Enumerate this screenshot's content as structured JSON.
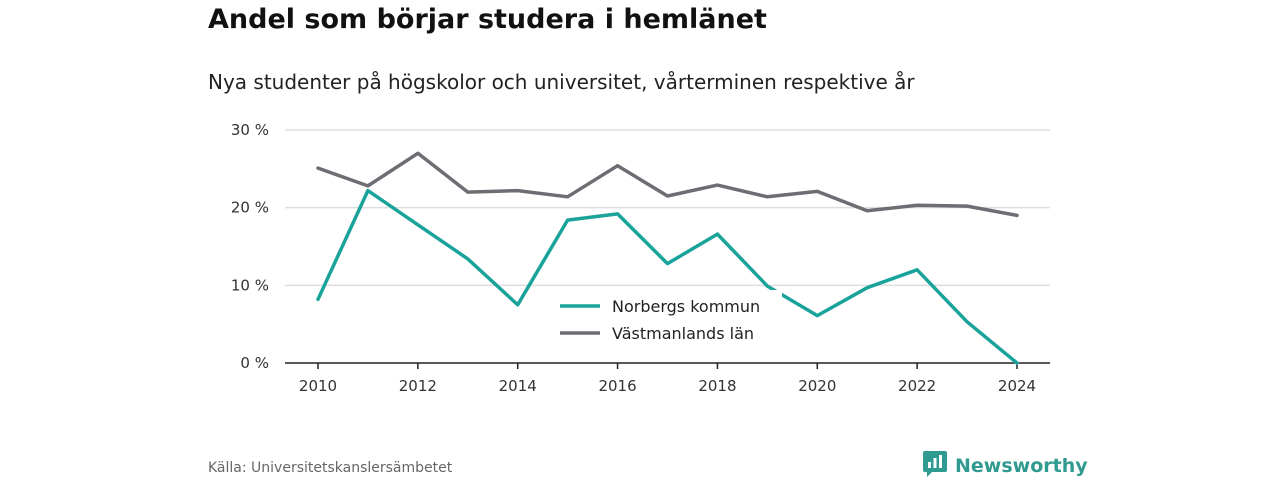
{
  "header": {
    "title": "Andel som börjar studera i hemlänet",
    "subtitle": "Nya studenter på högskolor och universitet, vårterminen respektive år"
  },
  "footer": {
    "source": "Källa: Universitetskanslersämbetet",
    "brand": "Newsworthy",
    "brand_icon": "bar-chart-logo-icon"
  },
  "colors": {
    "norbergs": "#1aa39a",
    "vastmanlands": "#6e6d73",
    "grid": "#dedede",
    "axis": "#222222",
    "brand": "#2f9a8f"
  },
  "chart_data": {
    "type": "line",
    "title": "Andel som börjar studera i hemlänet",
    "subtitle": "Nya studenter på högskolor och universitet, vårterminen respektive år",
    "xlabel": "",
    "ylabel": "",
    "x": [
      2010,
      2011,
      2012,
      2013,
      2014,
      2015,
      2016,
      2017,
      2018,
      2019,
      2020,
      2021,
      2022,
      2023,
      2024
    ],
    "xticks": [
      "2010",
      "2012",
      "2014",
      "2016",
      "2018",
      "2020",
      "2022",
      "2024"
    ],
    "yticks": [
      "0 %",
      "10 %",
      "20 %",
      "30 %"
    ],
    "ylim": [
      0,
      30
    ],
    "grid": "horizontal",
    "legend_position": "center",
    "series": [
      {
        "name": "Norbergs kommun",
        "values": [
          8.2,
          22.2,
          17.8,
          13.4,
          7.5,
          18.4,
          19.2,
          12.8,
          16.6,
          9.9,
          6.1,
          9.7,
          12.0,
          5.3,
          0.0
        ]
      },
      {
        "name": "Västmanlands län",
        "values": [
          25.1,
          22.8,
          27.0,
          22.0,
          22.2,
          21.4,
          25.4,
          21.5,
          22.9,
          21.4,
          22.1,
          19.6,
          20.3,
          20.2,
          19.0
        ]
      }
    ]
  }
}
